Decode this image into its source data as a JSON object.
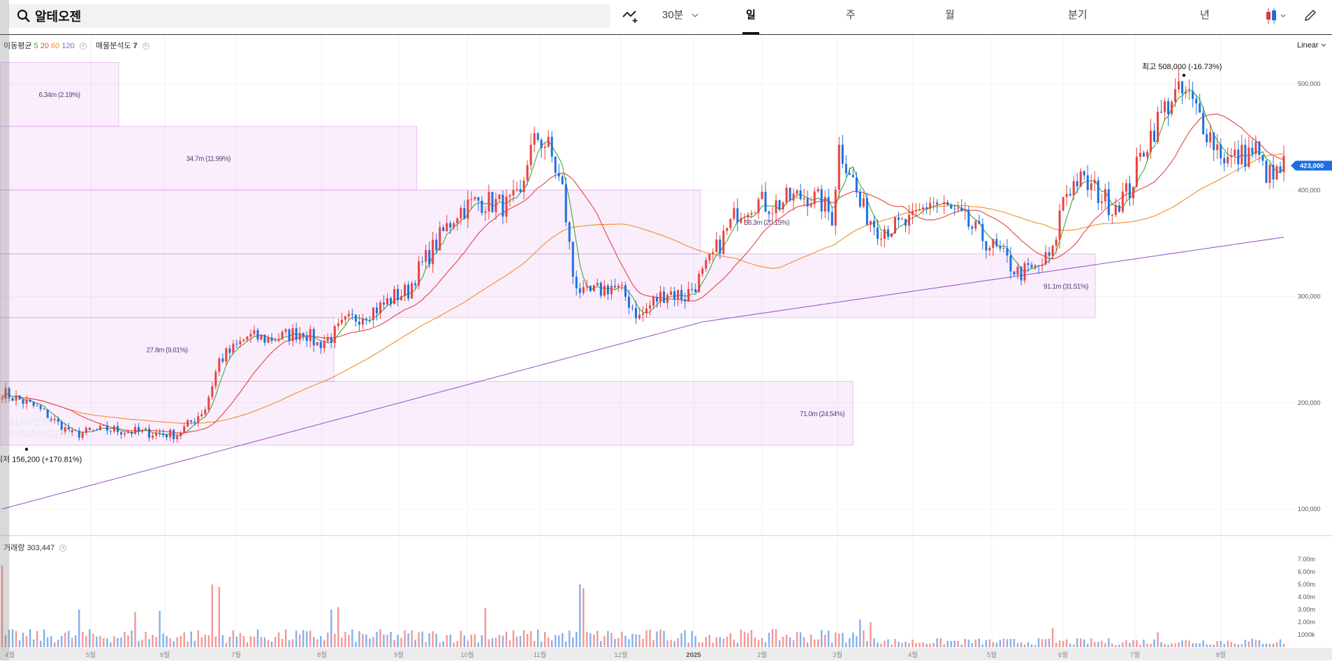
{
  "search": {
    "query": "알테오젠"
  },
  "timeframes": [
    {
      "label": "30분",
      "active": false
    },
    {
      "label": "일",
      "active": true
    },
    {
      "label": "주",
      "active": false
    },
    {
      "label": "월",
      "active": false
    },
    {
      "label": "분기",
      "active": false
    },
    {
      "label": "년",
      "active": false
    }
  ],
  "legend": {
    "ma_title": "이동평균",
    "ma_periods": [
      "5",
      "20",
      "60",
      "120"
    ],
    "ma_colors": [
      "#3fa73f",
      "#e8423f",
      "#f28c28",
      "#9b59d0"
    ],
    "volume_profile_label": "매물분석도",
    "volume_profile_value": "7",
    "volume_title": "거래량",
    "volume_value": "303,447"
  },
  "scale_label": "Linear",
  "watermark": [
    "NAVER",
    "FINANCIAL"
  ],
  "chart_data": {
    "type": "candlestick",
    "current_price": "423,000",
    "high_label": {
      "prefix": "최고",
      "value": "508,000",
      "change": "(-16.73%)",
      "price": 508000
    },
    "low_label": {
      "prefix": "최저",
      "value": "156,200",
      "change": "(+170.81%)",
      "price": 156200
    },
    "y_axis_ticks": [
      "500,000",
      "400,000",
      "300,000",
      "200,000",
      "100,000"
    ],
    "y_axis_values": [
      500000,
      400000,
      300000,
      200000,
      100000
    ],
    "volume_axis_ticks": [
      "7.00m",
      "6.00m",
      "5.00m",
      "4.00m",
      "3.00m",
      "2.00m",
      "1000k"
    ],
    "volume_axis_values": [
      7000000,
      6000000,
      5000000,
      4000000,
      3000000,
      2000000,
      1000000
    ],
    "x_axis_labels": [
      "4월",
      "5월",
      "6월",
      "7월",
      "8월",
      "9월",
      "10월",
      "11월",
      "12월",
      "2025",
      "2월",
      "3월",
      "4월",
      "5월",
      "6월",
      "7월",
      "8월"
    ],
    "volume_profile": [
      {
        "label": "6.34m (2.19%)",
        "price_low": 460000,
        "price_high": 520000,
        "share": 2.19
      },
      {
        "label": "34.7m (11.99%)",
        "price_low": 400000,
        "price_high": 460000,
        "share": 11.99
      },
      {
        "label": "58.3m (20.15%)",
        "price_low": 340000,
        "price_high": 400000,
        "share": 20.15
      },
      {
        "label": "91.1m (31.51%)",
        "price_low": 280000,
        "price_high": 340000,
        "share": 31.51
      },
      {
        "label": "27.8m (9.61%)",
        "price_low": 220000,
        "price_high": 280000,
        "share": 9.61
      },
      {
        "label": "71.0m (24.54%)",
        "price_low": 160000,
        "price_high": 220000,
        "share": 24.54
      }
    ],
    "price_path": [
      [
        0,
        210000
      ],
      [
        10,
        195000
      ],
      [
        20,
        170000
      ],
      [
        30,
        175000
      ],
      [
        40,
        172000
      ],
      [
        50,
        170000
      ],
      [
        55,
        185000
      ],
      [
        58,
        195000
      ],
      [
        62,
        240000
      ],
      [
        66,
        250000
      ],
      [
        70,
        262000
      ],
      [
        76,
        260000
      ],
      [
        80,
        262000
      ],
      [
        86,
        268000
      ],
      [
        90,
        255000
      ],
      [
        94,
        262000
      ],
      [
        98,
        275000
      ],
      [
        104,
        285000
      ],
      [
        108,
        290000
      ],
      [
        112,
        300000
      ],
      [
        116,
        305000
      ],
      [
        118,
        320000
      ],
      [
        122,
        340000
      ],
      [
        126,
        360000
      ],
      [
        130,
        380000
      ],
      [
        136,
        390000
      ],
      [
        140,
        388000
      ],
      [
        144,
        385000
      ],
      [
        148,
        392000
      ],
      [
        150,
        430000
      ],
      [
        153,
        450000
      ],
      [
        156,
        440000
      ],
      [
        160,
        400000
      ],
      [
        163,
        320000
      ],
      [
        166,
        300000
      ],
      [
        170,
        305000
      ],
      [
        174,
        310000
      ],
      [
        178,
        300000
      ],
      [
        182,
        280000
      ],
      [
        186,
        295000
      ],
      [
        190,
        305000
      ],
      [
        195,
        300000
      ],
      [
        200,
        320000
      ],
      [
        205,
        350000
      ],
      [
        210,
        380000
      ],
      [
        215,
        390000
      ],
      [
        220,
        385000
      ],
      [
        225,
        392000
      ],
      [
        230,
        395000
      ],
      [
        234,
        388000
      ],
      [
        237,
        375000
      ],
      [
        239,
        440000
      ],
      [
        242,
        420000
      ],
      [
        245,
        385000
      ],
      [
        250,
        365000
      ],
      [
        255,
        365000
      ],
      [
        260,
        370000
      ],
      [
        265,
        390000
      ],
      [
        270,
        382000
      ],
      [
        275,
        370000
      ],
      [
        280,
        355000
      ],
      [
        285,
        340000
      ],
      [
        290,
        322000
      ],
      [
        295,
        325000
      ],
      [
        300,
        340000
      ],
      [
        303,
        395000
      ],
      [
        307,
        410000
      ],
      [
        312,
        400000
      ],
      [
        317,
        385000
      ],
      [
        322,
        400000
      ],
      [
        326,
        440000
      ],
      [
        330,
        465000
      ],
      [
        334,
        488000
      ],
      [
        338,
        490000
      ],
      [
        342,
        470000
      ],
      [
        346,
        445000
      ],
      [
        350,
        428000
      ],
      [
        354,
        432000
      ],
      [
        358,
        438000
      ],
      [
        360,
        420000
      ],
      [
        363,
        410000
      ],
      [
        366,
        423000
      ]
    ],
    "volume_highlights": [
      [
        0,
        6.5
      ],
      [
        22,
        3.0
      ],
      [
        38,
        2.8
      ],
      [
        45,
        2.9
      ],
      [
        60,
        5.0
      ],
      [
        62,
        4.8
      ],
      [
        94,
        3.0
      ],
      [
        96,
        3.2
      ],
      [
        138,
        3.1
      ],
      [
        165,
        5.0
      ],
      [
        166,
        4.7
      ],
      [
        245,
        2.2
      ],
      [
        248,
        2.0
      ],
      [
        300,
        1.5
      ],
      [
        330,
        1.2
      ]
    ]
  }
}
